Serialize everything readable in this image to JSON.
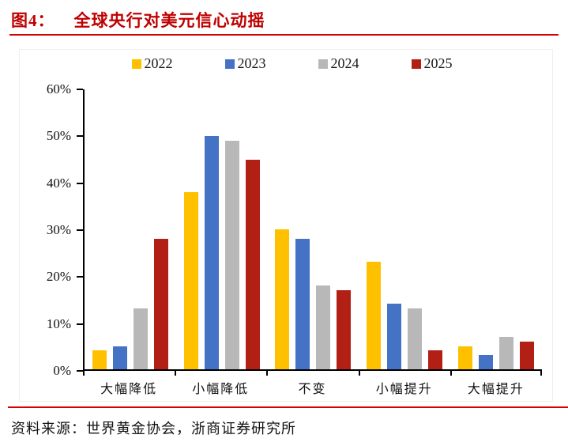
{
  "title": {
    "prefix": "图4：",
    "text": "全球央行对美元信心动摇"
  },
  "source_line": "资料来源：世界黄金协会，浙商证券研究所",
  "colors": {
    "title_red": "#c00000",
    "rule_red": "#d60000",
    "axis_black": "#000000"
  },
  "chart_data": {
    "type": "bar",
    "title": "全球央行对美元信心动摇",
    "categories": [
      "大幅降低",
      "小幅降低",
      "不变",
      "小幅提升",
      "大幅提升"
    ],
    "series": [
      {
        "name": "2022",
        "color": "#FFC000",
        "values": [
          4,
          38,
          30,
          23,
          5
        ]
      },
      {
        "name": "2023",
        "color": "#4472C4",
        "values": [
          5,
          50,
          28,
          14,
          3
        ]
      },
      {
        "name": "2024",
        "color": "#B8B8B8",
        "values": [
          13,
          49,
          18,
          13,
          7
        ]
      },
      {
        "name": "2025",
        "color": "#B22015",
        "values": [
          28,
          45,
          17,
          4,
          6
        ]
      }
    ],
    "xlabel": "",
    "ylabel": "",
    "ylim": [
      0,
      60
    ],
    "ytick_step": 10,
    "ytick_labels": [
      "0%",
      "10%",
      "20%",
      "30%",
      "40%",
      "50%",
      "60%"
    ],
    "grid": false,
    "legend_position": "top"
  }
}
